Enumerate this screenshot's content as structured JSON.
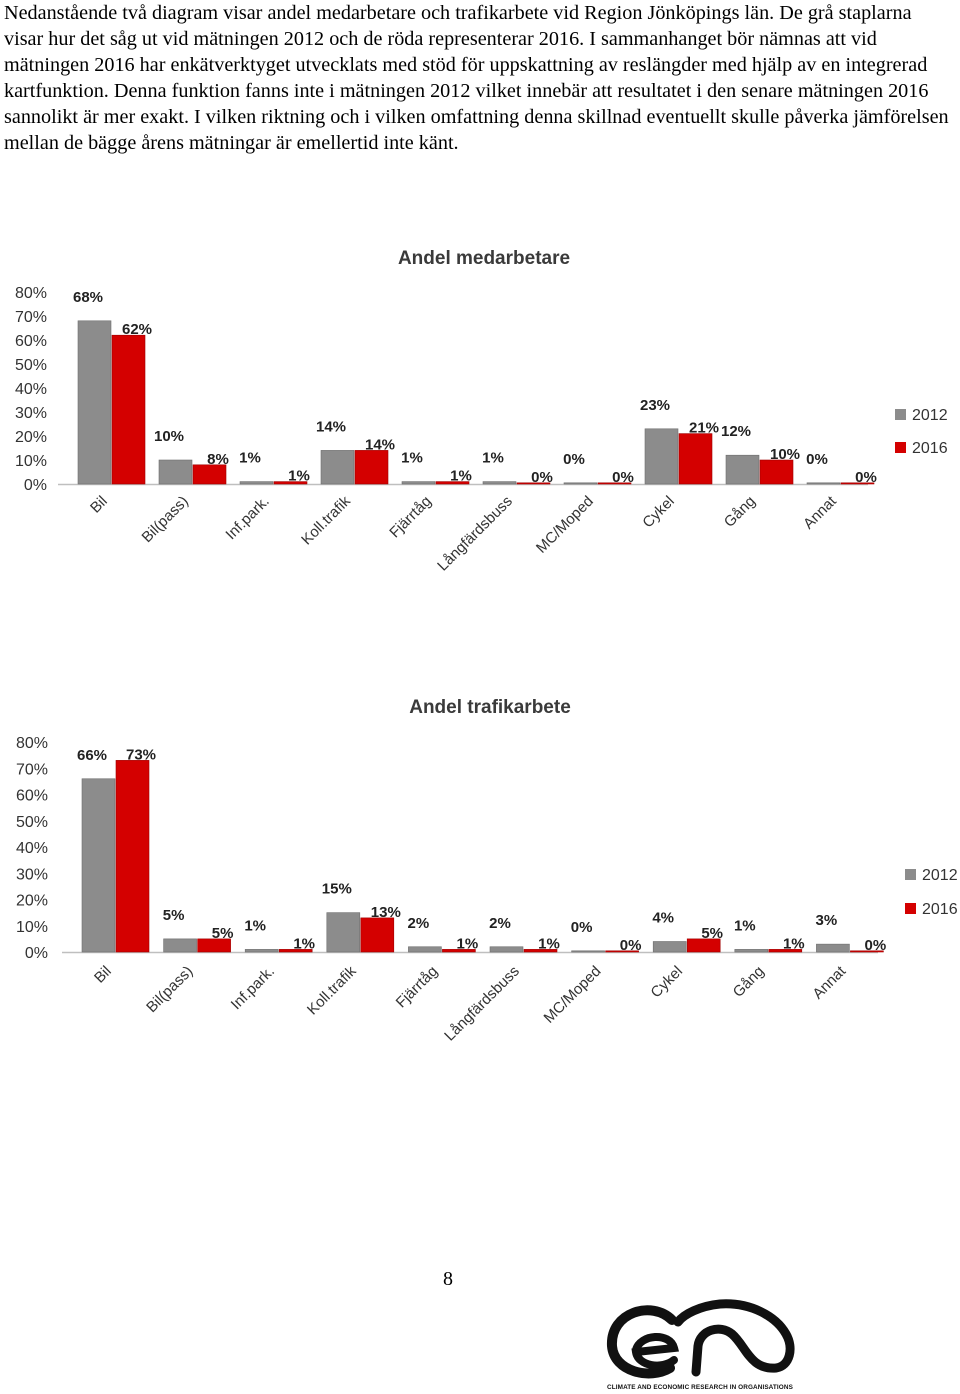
{
  "intro": {
    "paragraph": "Nedanstående två diagram visar andel medarbetare och trafikarbete vid Region Jönköpings län. De grå staplarna visar hur det såg ut vid mätningen 2012 och de röda representerar 2016. I sammanhanget bör nämnas att vid mätningen 2016 har enkätverktyget utvecklats med stöd för uppskattning av reslängder med hjälp av en integrerad kartfunktion. Denna funktion fanns inte i mätningen 2012 vilket innebär att resultatet i den senare mätningen 2016 sannolikt är mer exakt. I vilken riktning och i vilken omfattning denna skillnad eventuellt skulle påverka jämförelsen mellan de bägge årens mätningar är emellertid inte känt."
  },
  "colors": {
    "series_2012": "#8c8c8c",
    "series_2016": "#d40000",
    "axis": "#bfbfbf"
  },
  "chart_data": [
    {
      "type": "bar",
      "title": "Andel medarbetare",
      "categories": [
        "Bil",
        "Bil(pass)",
        "Inf.park.",
        "Koll.trafik",
        "Fjärrtåg",
        "Långfärdsbuss",
        "MC/Moped",
        "Cykel",
        "Gång",
        "Annat"
      ],
      "series": [
        {
          "name": "2012",
          "values": [
            68,
            10,
            1,
            14,
            1,
            1,
            0,
            23,
            12,
            0
          ],
          "labels": [
            "68%",
            "10%",
            "1%",
            "14%",
            "1%",
            "1%",
            "0%",
            "23%",
            "12%",
            "0%"
          ]
        },
        {
          "name": "2016",
          "values": [
            62,
            8,
            1,
            14,
            1,
            0,
            0,
            21,
            10,
            0
          ],
          "labels": [
            "62%",
            "8%",
            "1%",
            "14%",
            "1%",
            "0%",
            "0%",
            "21%",
            "10%",
            "0%"
          ]
        }
      ],
      "yticks": [
        "0%",
        "10%",
        "20%",
        "30%",
        "40%",
        "50%",
        "60%",
        "70%",
        "80%"
      ],
      "ylim": [
        0,
        80
      ],
      "legend": "right",
      "grid": false
    },
    {
      "type": "bar",
      "title": "Andel trafikarbete",
      "categories": [
        "Bil",
        "Bil(pass)",
        "Inf.park.",
        "Koll.trafik",
        "Fjärrtåg",
        "Långfärdsbuss",
        "MC/Moped",
        "Cykel",
        "Gång",
        "Annat"
      ],
      "series": [
        {
          "name": "2012",
          "values": [
            66,
            5,
            1,
            15,
            2,
            2,
            0,
            4,
            1,
            3
          ],
          "labels": [
            "66%",
            "5%",
            "1%",
            "15%",
            "2%",
            "2%",
            "0%",
            "4%",
            "1%",
            "3%"
          ]
        },
        {
          "name": "2016",
          "values": [
            73,
            5,
            1,
            13,
            1,
            1,
            0,
            5,
            1,
            0
          ],
          "labels": [
            "73%",
            "5%",
            "1%",
            "13%",
            "1%",
            "1%",
            "0%",
            "5%",
            "1%",
            "0%"
          ]
        }
      ],
      "yticks": [
        "0%",
        "10%",
        "20%",
        "30%",
        "40%",
        "50%",
        "60%",
        "70%",
        "80%"
      ],
      "ylim": [
        0,
        80
      ],
      "legend": "right",
      "grid": false
    }
  ],
  "page_number": "8",
  "logo": {
    "caption": "CLIMATE AND ECONOMIC RESEARCH IN ORGANISATIONS"
  }
}
